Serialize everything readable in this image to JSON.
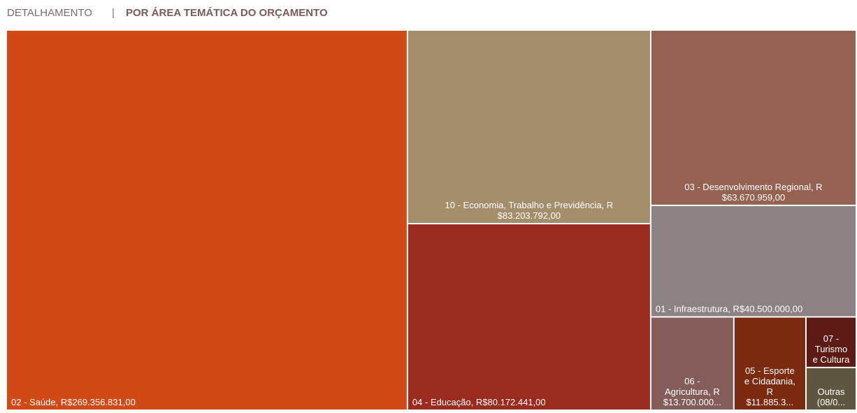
{
  "chart_data": {
    "type": "treemap",
    "title_prefix": "DETALHAMENTO",
    "title_separator": "|",
    "title": "POR ÁREA TEMÁTICA DO ORÇAMENTO",
    "labels": [
      [
        "02 - Saúde,  R$269.356.831,00"
      ],
      [
        "10 - Economia, Trabalho e Previdência,  R",
        "$83.203.792,00"
      ],
      [
        "04 - Educação,  R$80.172.441,00"
      ],
      [
        "03 - Desenvolvimento Regional,  R",
        "$63.670.959,00"
      ],
      [
        "01 - Infraestrutura,  R$40.500.000,00"
      ],
      [
        "06 -",
        "Agricultura,  R",
        "$13.700.000..."
      ],
      [
        "05 - Esporte",
        "e Cidadania,",
        "R",
        "$11.885.3..."
      ],
      [
        "07 -",
        "Turismo",
        "e Cultura"
      ],
      [
        "Outras",
        "(08/0..."
      ]
    ],
    "values": [
      269356831,
      83203792,
      80172441,
      63670959,
      40500000,
      13700000,
      11885300,
      4500000,
      3800000
    ],
    "colors": [
      "#d14a16",
      "#a38d6b",
      "#9a2b1e",
      "#956251",
      "#8c8283",
      "#845c5a",
      "#7c2a10",
      "#5e1a14",
      "#5f5640"
    ]
  }
}
